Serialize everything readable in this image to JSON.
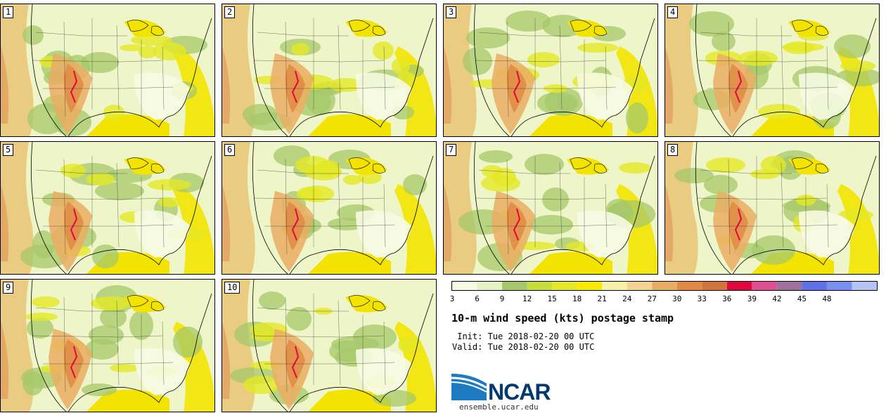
{
  "panels": [
    "1",
    "2",
    "3",
    "4",
    "5",
    "6",
    "7",
    "8",
    "9",
    "10"
  ],
  "colorbar": {
    "colors": [
      "#f6fbe2",
      "#e6f2c4",
      "#a6c86a",
      "#c8dc3c",
      "#e4e826",
      "#faea00",
      "#f6f0a8",
      "#f2d48e",
      "#eaad64",
      "#e08a44",
      "#d2753c",
      "#e0083c",
      "#e05090",
      "#a070a0",
      "#6070e8",
      "#7a90f0",
      "#b4c4f4"
    ],
    "labels": [
      "3",
      "6",
      "9",
      "12",
      "15",
      "18",
      "21",
      "24",
      "27",
      "30",
      "33",
      "36",
      "39",
      "42",
      "45",
      "48"
    ]
  },
  "title": "10-m wind speed (kts) postage stamp",
  "init_line": " Init: Tue 2018-02-20 00 UTC",
  "valid_line": "Valid: Tue 2018-02-20 00 UTC",
  "logo": {
    "name": "NCAR",
    "url": "ensemble.ucar.edu",
    "color": "#003a70"
  }
}
